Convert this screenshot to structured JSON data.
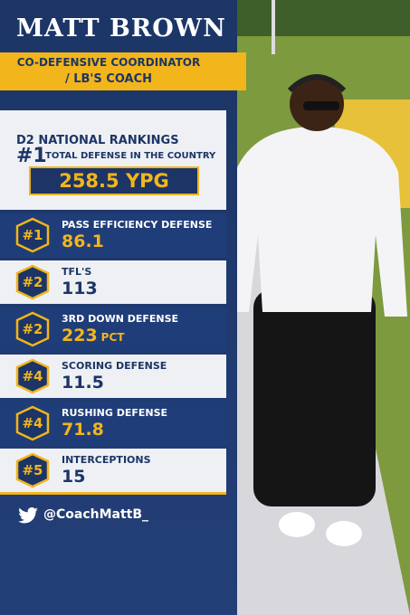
{
  "header": {
    "name": "MATT BROWN",
    "role_line1": "CO-DEFENSIVE COORDINATOR",
    "role_line2": "/ LB'S COACH"
  },
  "rankings": {
    "heading": "D2 NATIONAL RANKINGS",
    "top": {
      "rank": "#1",
      "label": "TOTAL DEFENSE IN THE COUNTRY",
      "value": "258.5 YPG"
    },
    "stats": [
      {
        "rank": "#1",
        "label": "PASS EFFICIENCY DEFENSE",
        "value": "86.1"
      },
      {
        "rank": "#2",
        "label": "TFL'S",
        "value": "113"
      },
      {
        "rank": "#2",
        "label": "3RD DOWN DEFENSE",
        "value": "223",
        "unit": "PCT"
      },
      {
        "rank": "#4",
        "label": "SCORING DEFENSE",
        "value": "11.5"
      },
      {
        "rank": "#4",
        "label": "RUSHING DEFENSE",
        "value": "71.8"
      },
      {
        "rank": "#5",
        "label": "INTERCEPTIONS",
        "value": "15"
      }
    ]
  },
  "social": {
    "handle": "@CoachMattB_"
  }
}
